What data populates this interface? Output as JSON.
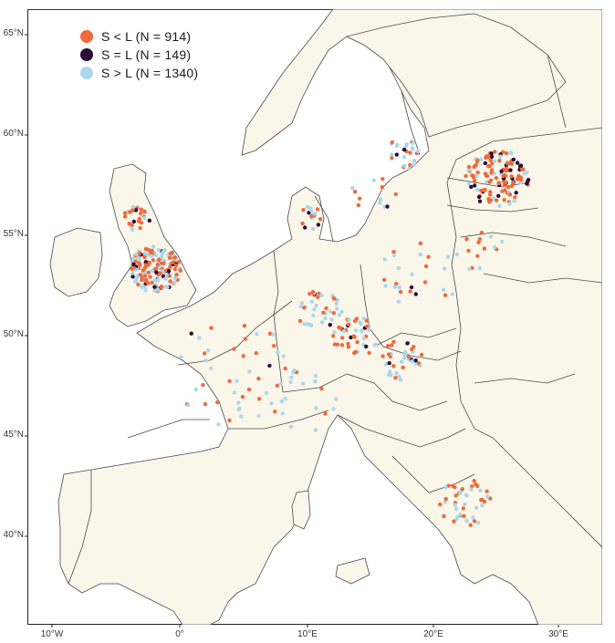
{
  "map": {
    "land_color": "#fbf6ea",
    "sea_color": "#ffffff",
    "border_color": "#4a4a4a"
  },
  "axes": {
    "lat_labels": [
      "65°N",
      "60°N",
      "55°N",
      "50°N",
      "45°N",
      "40°N"
    ],
    "lon_labels": [
      "10°W",
      "0°",
      "10°E",
      "20°E",
      "30°E"
    ]
  },
  "legend": {
    "items": [
      {
        "label": "S < L (N = 914)",
        "color": "#ef6a3b"
      },
      {
        "label": "S = L (N = 149)",
        "color": "#2e0a3a"
      },
      {
        "label": "S > L (N = 1340)",
        "color": "#a8d8ea"
      }
    ]
  }
}
